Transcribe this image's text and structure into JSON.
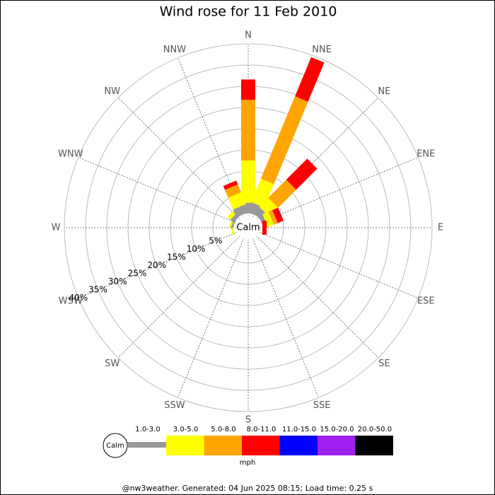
{
  "chart_data": {
    "type": "wind_rose",
    "title": "Wind rose for 11 Feb 2010",
    "categories": [
      "N",
      "NNE",
      "NE",
      "ENE",
      "E",
      "ESE",
      "SE",
      "SSE",
      "S",
      "SSW",
      "SW",
      "WSW",
      "W",
      "WNW",
      "NW",
      "NNW"
    ],
    "series": [
      {
        "name": "1.0-3.0",
        "color": "#999999",
        "values": [
          2.5,
          2.5,
          2,
          1,
          0,
          0,
          0,
          0,
          0,
          0,
          0,
          0,
          0,
          0.5,
          1,
          2
        ]
      },
      {
        "name": "3.0-5.0",
        "color": "#ffff00",
        "values": [
          10,
          6,
          3,
          1.5,
          0,
          0,
          0,
          0,
          0,
          0,
          0,
          0,
          0.5,
          0.5,
          1,
          3
        ]
      },
      {
        "name": "5.0-8.0",
        "color": "#ffa500",
        "values": [
          14.3,
          21,
          6,
          1,
          0,
          0,
          0,
          0,
          0,
          0,
          0,
          0,
          0,
          0,
          0,
          2
        ]
      },
      {
        "name": "8.0-11.0",
        "color": "#ff0000",
        "values": [
          4.8,
          10,
          7,
          1.5,
          1,
          0,
          0,
          0,
          0,
          0,
          0,
          0,
          0,
          0,
          0,
          1
        ]
      },
      {
        "name": "11.0-15.0",
        "color": "#0000ff",
        "values": [
          0,
          0,
          0,
          0,
          0,
          0,
          0,
          0,
          0,
          0,
          0,
          0,
          0,
          0,
          0,
          0
        ]
      },
      {
        "name": "15.0-20.0",
        "color": "#a020f0",
        "values": [
          0,
          0,
          0,
          0,
          0,
          0,
          0,
          0,
          0,
          0,
          0,
          0,
          0,
          0,
          0,
          0
        ]
      },
      {
        "name": "20.0-50.0",
        "color": "#000000",
        "values": [
          0,
          0,
          0,
          0,
          0,
          0,
          0,
          0,
          0,
          0,
          0,
          0,
          0,
          0,
          0,
          0
        ]
      }
    ],
    "calm_label": "Calm",
    "calm_color": "#999999",
    "unit": "mph",
    "rlim": [
      0,
      40
    ],
    "rticks": [
      {
        "value": 5,
        "label": "5%"
      },
      {
        "value": 10,
        "label": "10%"
      },
      {
        "value": 15,
        "label": "15%"
      },
      {
        "value": 20,
        "label": "20%"
      },
      {
        "value": 25,
        "label": "25%"
      },
      {
        "value": 30,
        "label": "30%"
      },
      {
        "value": 35,
        "label": "35%"
      },
      {
        "value": 40,
        "label": "40%"
      }
    ],
    "footer": "@nw3weather. Generated: 04 Jun 2025 08:15; Load time: 0.25 s"
  }
}
